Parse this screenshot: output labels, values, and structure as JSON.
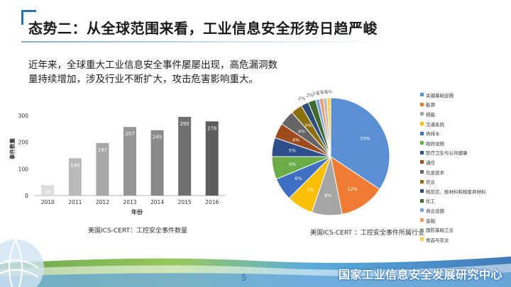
{
  "slide": {
    "title": "态势二：从全球范围来看，工业信息安全形势日趋严峻",
    "intro": "近年来，全球重大工业信息安全事件屡屡出现，高危漏洞数量持续增加，涉及行业不断扩大，攻击危害影响重大。",
    "page_number": "5",
    "footer_org": "国家工业信息安全发展研究中心"
  },
  "chart_data": [
    {
      "type": "bar",
      "categories": [
        "2010",
        "2011",
        "2012",
        "2013",
        "2014",
        "2015",
        "2016"
      ],
      "values": [
        39,
        140,
        197,
        257,
        245,
        295,
        278
      ],
      "value_labels": [
        "39",
        "140",
        "197",
        "257",
        "245",
        "295",
        "278"
      ],
      "ylabel": "事件数量",
      "xlabel": "年份",
      "yticks": [
        "0",
        "100",
        "200",
        "300"
      ],
      "ylim": [
        0,
        300
      ],
      "grid": false,
      "colors": [
        "#dcdcdc",
        "#b9b9b9",
        "#a7a7a7",
        "#969696",
        "#8a8a8a",
        "#707070",
        "#5c5c5c"
      ],
      "caption": "美国ICS-CERT：工控安全事件数量"
    },
    {
      "type": "pie",
      "categories": [
        "关键基础设施",
        "能源",
        "核能",
        "交通系统",
        "供排水",
        "政府设施",
        "医疗卫生与公共健康",
        "通信",
        "信息技术",
        "农业",
        "核反应、核材料和核废弃材料",
        "化工",
        "商业设施",
        "金融",
        "国防基础工业",
        "食品与农业"
      ],
      "values": [
        33,
        12,
        8,
        7,
        6,
        6,
        5,
        4,
        4,
        3,
        2,
        2,
        1,
        1,
        1,
        1
      ],
      "value_labels": [
        "33%",
        "12%",
        "8%",
        "7%",
        "6%",
        "6%",
        "5%",
        "4%",
        "4%",
        "3%",
        "2%",
        "2%",
        "1%",
        "1%",
        "1%",
        "1%"
      ],
      "colors": [
        "#5b8fd4",
        "#ee7c32",
        "#a5a5a5",
        "#fbbf0a",
        "#3f6fc3",
        "#6aad46",
        "#2d4f8c",
        "#9e4b1c",
        "#656565",
        "#8d6f0e",
        "#2f4d79",
        "#3f6a2e",
        "#7aa6e0",
        "#f29a63",
        "#bcbcbc",
        "#fdd04f"
      ],
      "legend_position": "right",
      "caption": "美国ICS-CERT ：工控安全事件所属行业"
    }
  ]
}
